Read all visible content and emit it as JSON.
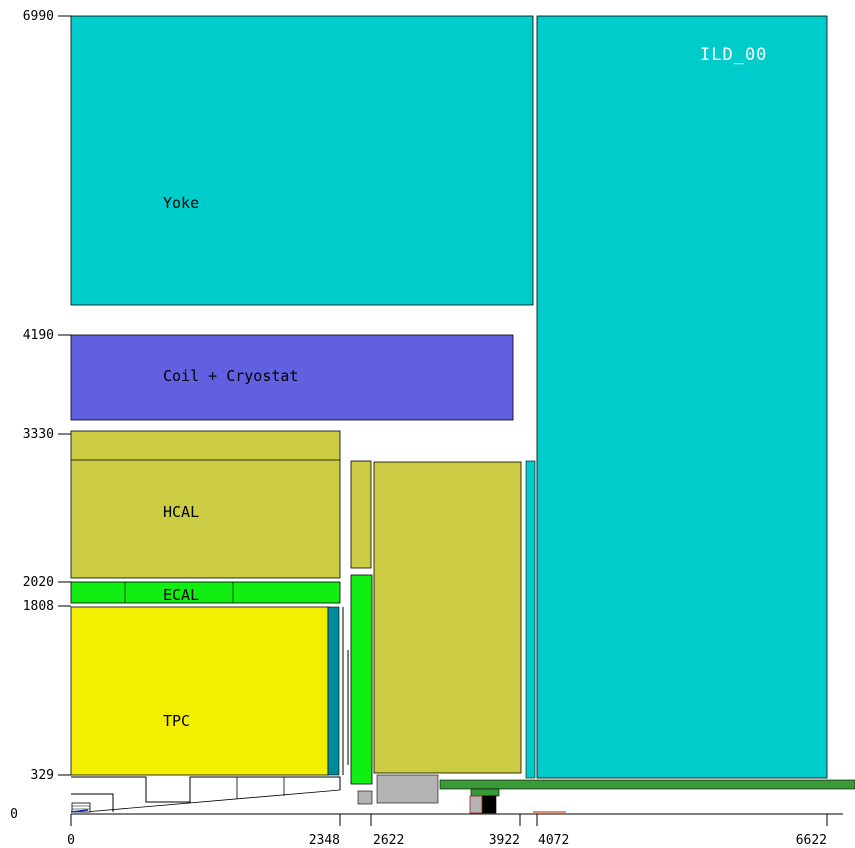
{
  "detector_name": "ILD_00",
  "labels": {
    "yoke": "Yoke",
    "coil": "Coil + Cryostat",
    "hcal": "HCAL",
    "ecal": "ECAL",
    "tpc": "TPC"
  },
  "y_axis_ticks": [
    "6990",
    "4190",
    "3330",
    "2020",
    "1808",
    "329",
    "0"
  ],
  "x_axis_ticks": [
    "0",
    "2348",
    "2622",
    "3922",
    "4072",
    "6622"
  ],
  "colors": {
    "yoke": "#00cccc",
    "coil": "#6060e0",
    "hcal": "#cccc44",
    "ecal": "#11ee11",
    "tpc": "#f4ef00",
    "tpc_endplate": "#008b9b",
    "beam_pipe_support": "#3a9a3a",
    "grey_part": "#b3b3b3"
  }
}
